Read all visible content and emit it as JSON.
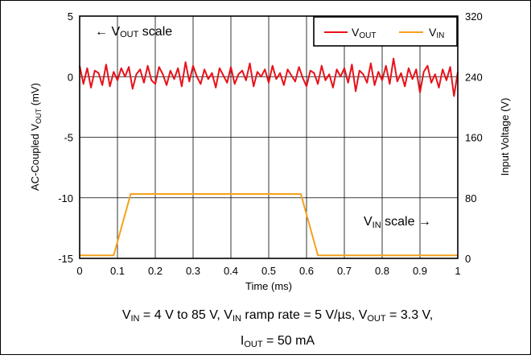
{
  "chart_data": {
    "type": "line",
    "title": "",
    "xlabel": "Time (ms)",
    "ylabel_left": {
      "base": "AC-Coupled V",
      "sub": "OUT",
      "unit": " (mV)"
    },
    "ylabel_right": "Input Voltage (V)",
    "xlim": [
      0,
      1
    ],
    "ylim_left": [
      -15,
      5
    ],
    "ylim_right": [
      0,
      320
    ],
    "x_ticks": [
      0,
      0.1,
      0.2,
      0.3,
      0.4,
      0.5,
      0.6,
      0.7,
      0.8,
      0.9,
      1
    ],
    "y_ticks_left": [
      5,
      0,
      -5,
      -10,
      -15
    ],
    "y_ticks_right": [
      320,
      240,
      160,
      80,
      0
    ],
    "grid": true,
    "legend_position": "top-right",
    "series": [
      {
        "name": "VOUT",
        "name_base": "V",
        "name_sub": "OUT",
        "axis": "left",
        "color": "#e8121a",
        "x": [
          0,
          0.01,
          0.02,
          0.03,
          0.04,
          0.05,
          0.06,
          0.07,
          0.08,
          0.09,
          0.1,
          0.11,
          0.12,
          0.13,
          0.14,
          0.15,
          0.16,
          0.17,
          0.18,
          0.19,
          0.2,
          0.21,
          0.22,
          0.23,
          0.24,
          0.25,
          0.26,
          0.27,
          0.28,
          0.29,
          0.3,
          0.31,
          0.32,
          0.33,
          0.34,
          0.35,
          0.36,
          0.37,
          0.38,
          0.39,
          0.4,
          0.41,
          0.42,
          0.43,
          0.44,
          0.45,
          0.46,
          0.47,
          0.48,
          0.49,
          0.5,
          0.51,
          0.52,
          0.53,
          0.54,
          0.55,
          0.56,
          0.57,
          0.58,
          0.59,
          0.6,
          0.61,
          0.62,
          0.63,
          0.64,
          0.65,
          0.66,
          0.67,
          0.68,
          0.69,
          0.7,
          0.71,
          0.72,
          0.73,
          0.74,
          0.75,
          0.76,
          0.77,
          0.78,
          0.79,
          0.8,
          0.81,
          0.82,
          0.83,
          0.84,
          0.85,
          0.86,
          0.87,
          0.88,
          0.89,
          0.9,
          0.91,
          0.92,
          0.93,
          0.94,
          0.95,
          0.96,
          0.97,
          0.98,
          0.99,
          1
        ],
        "values": [
          0.9,
          -0.6,
          0.7,
          -0.9,
          0.5,
          0.3,
          -0.7,
          1.0,
          -0.8,
          0.4,
          -0.3,
          0.7,
          0.0,
          0.8,
          -1.0,
          0.2,
          0.6,
          -0.5,
          0.9,
          -0.3,
          -0.6,
          0.8,
          0.2,
          -0.7,
          0.5,
          -0.2,
          0.7,
          -0.8,
          1.2,
          -0.4,
          0.9,
          0.0,
          -0.6,
          0.6,
          -0.2,
          0.3,
          -0.9,
          0.7,
          0.1,
          -0.5,
          0.8,
          -0.6,
          0.2,
          0.5,
          -0.3,
          1.1,
          -0.8,
          0.4,
          0.0,
          0.6,
          -0.5,
          0.9,
          -0.2,
          0.3,
          -0.7,
          0.6,
          0.1,
          -0.4,
          0.8,
          -0.1,
          -0.8,
          0.5,
          0.3,
          -0.6,
          0.9,
          -0.3,
          0.2,
          -0.9,
          0.6,
          0.0,
          0.7,
          -0.5,
          1.0,
          -1.2,
          0.5,
          0.2,
          -0.5,
          1.1,
          -0.7,
          0.4,
          -0.3,
          0.9,
          -0.6,
          1.5,
          -0.4,
          0.3,
          -0.8,
          0.7,
          -0.2,
          0.6,
          -1.3,
          0.4,
          0.9,
          -0.5,
          0.2,
          -0.9,
          0.6,
          -0.3,
          0.8,
          -1.6,
          0.4
        ]
      },
      {
        "name": "VIN",
        "name_base": "V",
        "name_sub": "IN",
        "axis": "right",
        "color": "#f4a11c",
        "x": [
          0,
          0.09,
          0.135,
          0.585,
          0.63,
          1
        ],
        "values": [
          4,
          4,
          85,
          85,
          4,
          4
        ]
      }
    ],
    "annotations": [
      {
        "text_pre": "← V",
        "text_sub": "OUT",
        "text_post": " scale"
      },
      {
        "text_pre": "V",
        "text_sub": "IN",
        "text_post": " scale →"
      }
    ]
  },
  "caption": {
    "line1": {
      "p1": "V",
      "s1": "IN",
      "p2": " = 4 V to 85 V, V",
      "s2": "IN",
      "p3": " ramp rate = 5 V/µs, V",
      "s3": "OUT",
      "p4": " = 3.3 V,"
    },
    "line2": {
      "p1": "I",
      "s1": "OUT",
      "p2": " = 50 mA"
    }
  }
}
